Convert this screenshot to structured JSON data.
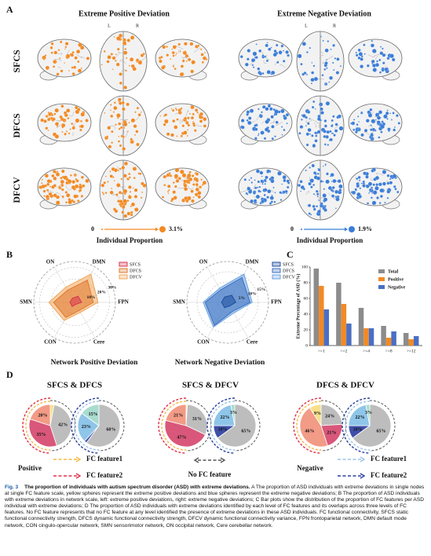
{
  "figure": {
    "panel_labels": [
      "A",
      "B",
      "C",
      "D"
    ],
    "caption": {
      "label": "Fig. 3",
      "title": "The proportion of individuals with autism spectrum disorder (ASD) with extreme deviations.",
      "text": "A The proportion of ASD individuals with extreme deviations in single nodes at single FC feature scale, yellow spheres represent the extreme positive deviations and blue spheres represent the extreme negative deviations; B The proportion of ASD individuals with extreme deviations in network scale, left: extreme positive deviations, right: extreme negative deviations; C Bar plots show the distribution of the proportion of FC features per ASD individual with extreme deviations; D The proportion of ASD individuals with extreme deviations identified by each level of FC features and its overlaps across three levels of FC features. No FC feature represents that no FC feature at any level identified the presence of extreme deviations in these ASD individuals. FC functional connectivity, SFCS static functional connectivity strength, DFCS dynamic functional connectivity strength, DFCV dynamic functional connectivity variance, FPN frontoparietal network, DMN default mode network, CON cingulo-opercular network, SMN sensorimotor network, ON occipital network, Cere cerebellar network."
    }
  },
  "brain_maps": {
    "titles": [
      "Extreme Positive Deviation",
      "Extreme Negative Deviation"
    ],
    "rows": [
      "SFCS",
      "DFCS",
      "DFCV"
    ],
    "hemisphere_labels": [
      "L",
      "R"
    ],
    "scales": [
      {
        "min_label": "0",
        "max_label": "3.1%",
        "title": "Individual Proportion",
        "color": "#f28a24"
      },
      {
        "min_label": "0",
        "max_label": "1.9%",
        "title": "Individual Proportion",
        "color": "#3b7dd8"
      }
    ]
  },
  "pie_legend": {
    "positive": {
      "label": "Positive",
      "items": [
        {
          "name": "FC feature1",
          "color": "#f5b942"
        },
        {
          "name": "FC feature2",
          "color": "#e0304a"
        }
      ]
    },
    "none": {
      "label": "No FC feature",
      "color": "#555555"
    },
    "negative": {
      "label": "Negative",
      "items": [
        {
          "name": "FC feature1",
          "color": "#9cc3e6"
        },
        {
          "name": "FC feature2",
          "color": "#2a3f9d"
        }
      ]
    }
  },
  "chart_data": [
    {
      "type": "radar",
      "title": "Network Positive Deviation",
      "categories": [
        "ON",
        "DMN",
        "FPN",
        "Cere",
        "CON",
        "SMN"
      ],
      "series": [
        {
          "name": "SFCS",
          "color": "#d6364f",
          "values": [
            4,
            6,
            6,
            2,
            4,
            4
          ]
        },
        {
          "name": "DFCS",
          "color": "#e2762a",
          "values": [
            12,
            22,
            16,
            8,
            15,
            18
          ]
        },
        {
          "name": "DFCV",
          "color": "#f0a65a",
          "values": [
            15,
            28,
            20,
            10,
            18,
            22
          ]
        }
      ],
      "rlim": [
        0,
        35
      ],
      "rticks": [
        {
          "value": 10,
          "label": "10%"
        },
        {
          "value": 20,
          "label": "20%"
        },
        {
          "value": 30,
          "label": "30%"
        }
      ]
    },
    {
      "type": "radar",
      "title": "Network Negative Deviation",
      "categories": [
        "ON",
        "DMN",
        "FPN",
        "Cere",
        "CON",
        "SMN"
      ],
      "series": [
        {
          "name": "SFCS",
          "color": "#1f4e9c",
          "values": [
            3,
            4,
            4,
            2,
            3,
            3
          ]
        },
        {
          "name": "DFCS",
          "color": "#3b6fc0",
          "values": [
            7,
            14,
            11,
            5,
            13,
            11
          ]
        },
        {
          "name": "DFCV",
          "color": "#6aa2e0",
          "values": [
            8,
            16,
            12,
            6,
            14,
            12
          ]
        }
      ],
      "rlim": [
        0,
        20
      ],
      "rticks": [
        {
          "value": 5,
          "label": "5%"
        },
        {
          "value": 10,
          "label": "10%"
        },
        {
          "value": 15,
          "label": "15%"
        }
      ]
    },
    {
      "type": "bar",
      "ylabel": "Extreme Percentage of ASD (%)",
      "categories": [
        ">=1",
        ">=2",
        ">=4",
        ">=8",
        ">=12"
      ],
      "series": [
        {
          "name": "Total",
          "color": "#8c8c8c",
          "values": [
            98,
            80,
            48,
            25,
            16
          ]
        },
        {
          "name": "Positive",
          "color": "#f28a24",
          "values": [
            76,
            53,
            22,
            10,
            8
          ]
        },
        {
          "name": "Negative",
          "color": "#4a6fc4",
          "values": [
            46,
            28,
            22,
            18,
            12
          ]
        }
      ],
      "ylim": [
        0,
        100
      ],
      "yticks": [
        0,
        20,
        40,
        60,
        80,
        100
      ]
    },
    {
      "type": "pie",
      "title": "SFCS & DFCS",
      "pies": [
        {
          "values": [
            3,
            42,
            35,
            20
          ],
          "value_labels": [
            null,
            "42%",
            "35%",
            "20%"
          ],
          "colors": [
            "#f7e08a",
            "#bdbdbd",
            "#d9577a",
            "#f29b86"
          ]
        },
        {
          "values": [
            60,
            2,
            23,
            15
          ],
          "value_labels": [
            "60%",
            null,
            "23%",
            "15%"
          ],
          "colors": [
            "#bdbdbd",
            "#3f4fa8",
            "#8ec5e8",
            "#a8dccf"
          ]
        }
      ]
    },
    {
      "type": "pie",
      "title": "SFCS & DFCV",
      "pies": [
        {
          "values": [
            1,
            31,
            47,
            21
          ],
          "value_labels": [
            null,
            "31%",
            "47%",
            "21%"
          ],
          "colors": [
            "#f7e08a",
            "#bdbdbd",
            "#d9577a",
            "#f29b86"
          ]
        },
        {
          "values": [
            65,
            10,
            22,
            3
          ],
          "value_labels": [
            "65%",
            "10%",
            "22%",
            "3%"
          ],
          "colors": [
            "#bdbdbd",
            "#3f4fa8",
            "#8ec5e8",
            "#a8dccf"
          ]
        }
      ]
    },
    {
      "type": "pie",
      "title": "DFCS & DFCV",
      "pies": [
        {
          "values": [
            24,
            21,
            46,
            9
          ],
          "value_labels": [
            "24%",
            "21%",
            "46%",
            "9%"
          ],
          "colors": [
            "#bdbdbd",
            "#d9577a",
            "#f29b86",
            "#f7e08a"
          ]
        },
        {
          "values": [
            65,
            10,
            22,
            3
          ],
          "value_labels": [
            "65%",
            "10%",
            "22%",
            "3%"
          ],
          "colors": [
            "#bdbdbd",
            "#3f4fa8",
            "#8ec5e8",
            "#a8dccf"
          ]
        }
      ]
    }
  ]
}
